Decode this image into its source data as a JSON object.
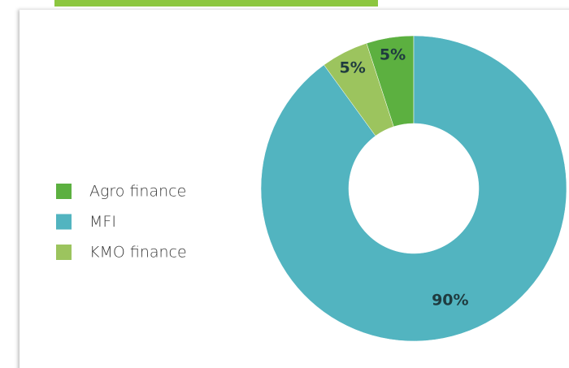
{
  "chart_data": {
    "type": "donut",
    "categories": [
      "Agro finance",
      "MFI",
      "KMO finance"
    ],
    "values": [
      5,
      90,
      5
    ],
    "value_labels": [
      "5%",
      "90%",
      "5%"
    ],
    "colors": [
      "#5cb040",
      "#52b4c0",
      "#9cc45e"
    ],
    "legend": "left"
  }
}
